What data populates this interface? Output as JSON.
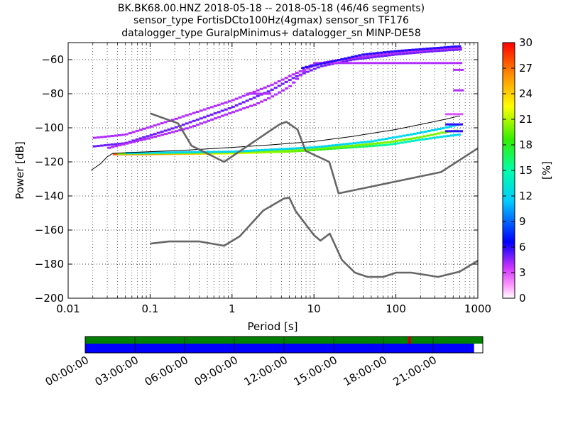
{
  "title_lines": [
    "BK.BK68.00.HNZ   2018-05-18 -- 2018-05-18  (46/46 segments)",
    "sensor_type FortisDCto100Hz(4gmax) sensor_sn TF176",
    "datalogger_type GuralpMinimus+ datalogger_sn MINP-DE58"
  ],
  "chart_data": {
    "type": "heatmap",
    "xlabel": "Period [s]",
    "ylabel": "Power [dB]",
    "xscale": "log",
    "xlim": [
      0.01,
      1000
    ],
    "ylim": [
      -200,
      -50
    ],
    "xticks": [
      0.01,
      0.1,
      1,
      10,
      100,
      1000
    ],
    "xtick_labels": [
      "0.01",
      "0.1",
      "1",
      "10",
      "100",
      "1000"
    ],
    "yticks": [
      -200,
      -180,
      -160,
      -140,
      -120,
      -100,
      -80,
      -60
    ],
    "ytick_labels": [
      "−200",
      "−180",
      "−160",
      "−140",
      "−120",
      "−100",
      "−80",
      "−60"
    ],
    "grid": true,
    "colorbar": {
      "label": "[%]",
      "ticks": [
        0,
        3,
        6,
        9,
        12,
        15,
        18,
        21,
        24,
        27,
        30
      ],
      "range": [
        0,
        30
      ]
    },
    "noise_models": {
      "high": [
        [
          0.1,
          -91.5
        ],
        [
          0.22,
          -97.4
        ],
        [
          0.32,
          -110.5
        ],
        [
          0.8,
          -120
        ],
        [
          3.8,
          -98
        ],
        [
          4.6,
          -96.5
        ],
        [
          6.3,
          -101
        ],
        [
          7.9,
          -113.5
        ],
        [
          15.4,
          -120
        ],
        [
          20,
          -138.5
        ],
        [
          354.8,
          -126
        ],
        [
          1000,
          -112
        ]
      ],
      "low": [
        [
          0.1,
          -168
        ],
        [
          0.17,
          -166.7
        ],
        [
          0.4,
          -166.7
        ],
        [
          0.8,
          -169.2
        ],
        [
          1.24,
          -163.7
        ],
        [
          2.4,
          -148.6
        ],
        [
          4.3,
          -141.5
        ],
        [
          5,
          -141.1
        ],
        [
          6,
          -149
        ],
        [
          10,
          -163
        ],
        [
          12,
          -166.2
        ],
        [
          15.6,
          -162.1
        ],
        [
          21.9,
          -177.5
        ],
        [
          31.6,
          -185
        ],
        [
          45,
          -187.5
        ],
        [
          70,
          -187.5
        ],
        [
          101,
          -185
        ],
        [
          154,
          -185
        ],
        [
          328,
          -187.5
        ],
        [
          600,
          -184.4
        ],
        [
          1000,
          -178
        ]
      ]
    },
    "mean_curve": [
      [
        0.019,
        -125
      ],
      [
        0.025,
        -121
      ],
      [
        0.03,
        -117
      ],
      [
        0.035,
        -115
      ],
      [
        0.1,
        -114
      ],
      [
        0.3,
        -113
      ],
      [
        1,
        -111.5
      ],
      [
        3,
        -110
      ],
      [
        10,
        -108
      ],
      [
        30,
        -105
      ],
      [
        100,
        -101
      ],
      [
        200,
        -98
      ],
      [
        400,
        -95
      ],
      [
        600,
        -93
      ]
    ],
    "psd_branches": [
      {
        "pct": 28,
        "points": [
          [
            0.035,
            -115.5
          ],
          [
            0.1,
            -115.5
          ],
          [
            1,
            -115
          ],
          [
            5,
            -114
          ],
          [
            10,
            -113
          ],
          [
            20,
            -112
          ],
          [
            40,
            -111
          ],
          [
            80,
            -110
          ],
          [
            200,
            -107
          ],
          [
            400,
            -105
          ],
          [
            600,
            -104
          ]
        ]
      },
      {
        "pct": 20,
        "points": [
          [
            0.04,
            -115.2
          ],
          [
            1,
            -114.5
          ],
          [
            5,
            -113.2
          ],
          [
            10,
            -112.2
          ],
          [
            30,
            -110.5
          ],
          [
            80,
            -108.5
          ],
          [
            200,
            -105.5
          ],
          [
            400,
            -102.5
          ],
          [
            600,
            -101.5
          ]
        ]
      },
      {
        "pct": 12,
        "points": [
          [
            0.05,
            -114.8
          ],
          [
            1,
            -114
          ],
          [
            10,
            -111.5
          ],
          [
            50,
            -108
          ],
          [
            150,
            -104
          ],
          [
            400,
            -100
          ],
          [
            600,
            -98
          ]
        ]
      },
      {
        "pct": 5,
        "points": [
          [
            0.02,
            -111
          ],
          [
            0.05,
            -109
          ],
          [
            0.2,
            -100
          ],
          [
            1,
            -88
          ],
          [
            3,
            -78
          ],
          [
            6,
            -70
          ],
          [
            12,
            -64
          ],
          [
            30,
            -60
          ],
          [
            100,
            -57
          ],
          [
            300,
            -55
          ],
          [
            650,
            -54
          ]
        ]
      },
      {
        "pct": 4,
        "points": [
          [
            0.02,
            -106
          ],
          [
            0.05,
            -104
          ],
          [
            0.2,
            -95
          ],
          [
            1,
            -84
          ],
          [
            3,
            -75
          ],
          [
            6,
            -68
          ],
          [
            12,
            -62
          ],
          [
            30,
            -59
          ],
          [
            100,
            -56
          ],
          [
            300,
            -54
          ],
          [
            650,
            -53
          ]
        ]
      },
      {
        "pct": 4,
        "points": [
          [
            0.03,
            -112
          ],
          [
            0.1,
            -106
          ],
          [
            0.3,
            -100
          ],
          [
            1,
            -91
          ],
          [
            2,
            -86
          ],
          [
            3,
            -82
          ],
          [
            5,
            -76
          ],
          [
            8,
            -66
          ],
          [
            10,
            -62
          ],
          [
            40,
            -62
          ],
          [
            100,
            -62
          ],
          [
            300,
            -62
          ],
          [
            650,
            -62
          ]
        ]
      },
      {
        "pct": 6,
        "points": [
          [
            7,
            -65
          ],
          [
            40,
            -57
          ],
          [
            100,
            -55
          ],
          [
            650,
            -52
          ]
        ]
      },
      {
        "pct": 4,
        "points": [
          [
            1.5,
            -80
          ],
          [
            3,
            -80
          ]
        ]
      },
      {
        "pct": 3,
        "points": [
          [
            400,
            -92
          ],
          [
            650,
            -92
          ]
        ]
      },
      {
        "pct": 6,
        "points": [
          [
            400,
            -98
          ],
          [
            650,
            -98
          ]
        ]
      },
      {
        "pct": 4,
        "points": [
          [
            500,
            -78
          ],
          [
            650,
            -78
          ]
        ]
      },
      {
        "pct": 4,
        "points": [
          [
            500,
            -66
          ],
          [
            650,
            -66
          ]
        ]
      },
      {
        "pct": 6,
        "points": [
          [
            400,
            -102
          ],
          [
            650,
            -102
          ]
        ]
      }
    ]
  },
  "timeline": {
    "labels": [
      "00:00:00",
      "03:00:00",
      "06:00:00",
      "09:00:00",
      "12:00:00",
      "15:00:00",
      "18:00:00",
      "21:00:00"
    ],
    "data_coverage_fraction": 0.978,
    "gap_marker_fraction": 0.812,
    "colors": {
      "coverage": "#008000",
      "data": "#0000ff",
      "gap": "#cc0000"
    }
  }
}
